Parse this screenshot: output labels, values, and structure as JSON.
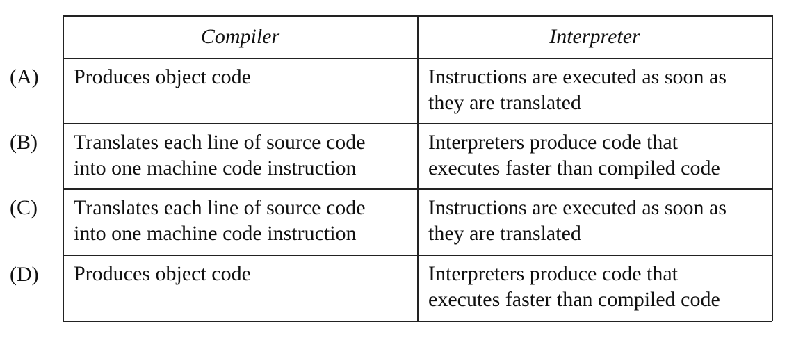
{
  "table": {
    "headers": {
      "compiler": "Compiler",
      "interpreter": "Interpreter"
    },
    "rows": [
      {
        "option": "(A)",
        "compiler": [
          "Produces object code"
        ],
        "interpreter": [
          "Instructions are executed as soon as",
          "they are translated"
        ]
      },
      {
        "option": "(B)",
        "compiler": [
          "Translates each line of source code",
          "into one machine code instruction"
        ],
        "interpreter": [
          "Interpreters produce code that",
          "executes faster than compiled code"
        ]
      },
      {
        "option": "(C)",
        "compiler": [
          "Translates each line of source code",
          "into one machine code instruction"
        ],
        "interpreter": [
          "Instructions are executed as soon as",
          "they are translated"
        ]
      },
      {
        "option": "(D)",
        "compiler": [
          "Produces object code"
        ],
        "interpreter": [
          "Interpreters produce code that",
          "executes faster than compiled code"
        ]
      }
    ]
  }
}
